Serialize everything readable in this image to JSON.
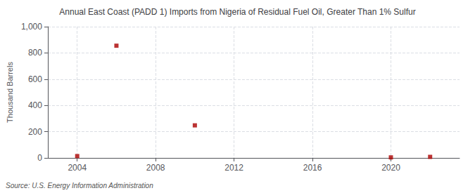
{
  "chart_data": {
    "type": "scatter",
    "title": "Annual East Coast (PADD 1) Imports from Nigeria of Residual Fuel Oil, Greater Than 1% Sulfur",
    "ylabel": "Thousand Barrels",
    "source": "Source: U.S. Energy Information Administration",
    "x": [
      2004,
      2006,
      2010,
      2020,
      2022
    ],
    "values": [
      14,
      855,
      248,
      4,
      8
    ],
    "color": "#aa0000",
    "marker": "square",
    "xlim": [
      2002.5,
      2023.5
    ],
    "xticks": [
      2004,
      2008,
      2012,
      2016,
      2020
    ],
    "ylim": [
      0,
      1000
    ],
    "yticks": [
      0,
      200,
      400,
      600,
      800,
      {
        "value": 1000,
        "label": "1,000"
      }
    ],
    "grid": true
  }
}
